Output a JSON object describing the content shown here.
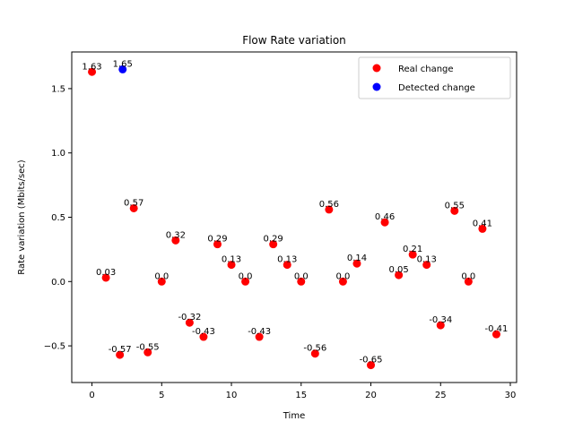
{
  "chart_data": {
    "type": "scatter",
    "title": "Flow Rate variation",
    "xlabel": "Time",
    "ylabel": "Rate variation (Mbits/sec)",
    "xlim": [
      -1.45,
      30.45
    ],
    "ylim": [
      -0.785,
      1.785
    ],
    "xticks": [
      0,
      5,
      10,
      15,
      20,
      25,
      30
    ],
    "yticks": [
      -0.5,
      0.0,
      0.5,
      1.0,
      1.5
    ],
    "ytick_labels": [
      "−0.5",
      "0.0",
      "0.5",
      "1.0",
      "1.5"
    ],
    "grid": false,
    "legend_position": "top-right",
    "series": [
      {
        "name": "Real change",
        "color": "#ff0000",
        "points": [
          {
            "x": 0,
            "y": 1.63,
            "label": "1.63"
          },
          {
            "x": 1,
            "y": 0.03,
            "label": "0.03"
          },
          {
            "x": 2,
            "y": -0.57,
            "label": "-0.57"
          },
          {
            "x": 3,
            "y": 0.57,
            "label": "0.57"
          },
          {
            "x": 4,
            "y": -0.55,
            "label": "-0.55"
          },
          {
            "x": 5,
            "y": 0.0,
            "label": "0.0"
          },
          {
            "x": 6,
            "y": 0.32,
            "label": "0.32"
          },
          {
            "x": 7,
            "y": -0.32,
            "label": "-0.32"
          },
          {
            "x": 8,
            "y": -0.43,
            "label": "-0.43"
          },
          {
            "x": 9,
            "y": 0.29,
            "label": "0.29"
          },
          {
            "x": 10,
            "y": 0.13,
            "label": "0.13"
          },
          {
            "x": 11,
            "y": 0.0,
            "label": "0.0"
          },
          {
            "x": 12,
            "y": -0.43,
            "label": "-0.43"
          },
          {
            "x": 13,
            "y": 0.29,
            "label": "0.29"
          },
          {
            "x": 14,
            "y": 0.13,
            "label": "0.13"
          },
          {
            "x": 15,
            "y": 0.0,
            "label": "0.0"
          },
          {
            "x": 16,
            "y": -0.56,
            "label": "-0.56"
          },
          {
            "x": 17,
            "y": 0.56,
            "label": "0.56"
          },
          {
            "x": 18,
            "y": 0.0,
            "label": "0.0"
          },
          {
            "x": 19,
            "y": 0.14,
            "label": "0.14"
          },
          {
            "x": 20,
            "y": -0.65,
            "label": "-0.65"
          },
          {
            "x": 21,
            "y": 0.46,
            "label": "0.46"
          },
          {
            "x": 22,
            "y": 0.05,
            "label": "0.05"
          },
          {
            "x": 23,
            "y": 0.21,
            "label": "0.21"
          },
          {
            "x": 24,
            "y": 0.13,
            "label": "0.13"
          },
          {
            "x": 25,
            "y": -0.34,
            "label": "-0.34"
          },
          {
            "x": 26,
            "y": 0.55,
            "label": "0.55"
          },
          {
            "x": 27,
            "y": 0.0,
            "label": "0.0"
          },
          {
            "x": 28,
            "y": 0.41,
            "label": "0.41"
          },
          {
            "x": 29,
            "y": -0.41,
            "label": "-0.41"
          }
        ]
      },
      {
        "name": "Detected change",
        "color": "#0000ff",
        "points": [
          {
            "x": 2.2,
            "y": 1.65,
            "label": "1.65"
          }
        ]
      }
    ]
  }
}
